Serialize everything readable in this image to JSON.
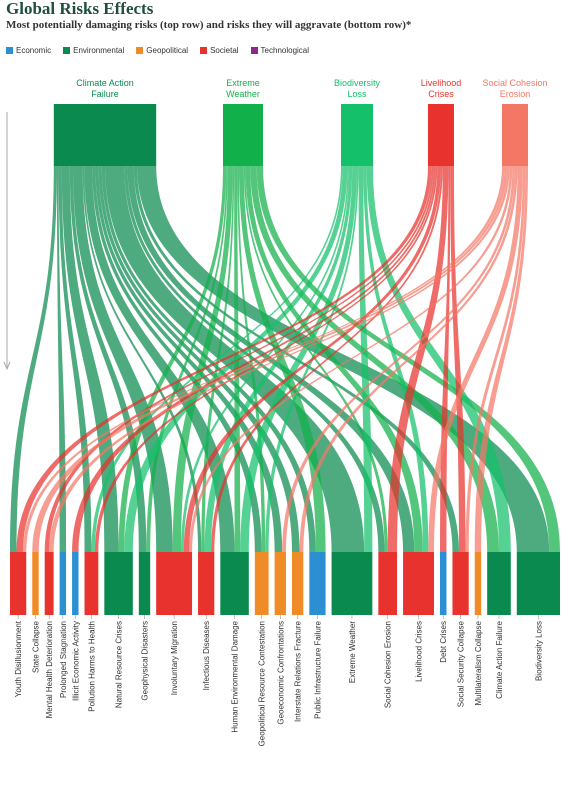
{
  "header": {
    "title": "Global Risks Effects",
    "subtitle": "Most potentially damaging risks (top row) and risks they will aggravate (bottom row)*"
  },
  "legend": [
    {
      "label": "Economic",
      "color": "#2b8fd2"
    },
    {
      "label": "Environmental",
      "color": "#0a8a4f"
    },
    {
      "label": "Geopolitical",
      "color": "#f08c28"
    },
    {
      "label": "Societal",
      "color": "#e8322d"
    },
    {
      "label": "Technological",
      "color": "#8a2a8a"
    }
  ],
  "chart_data": {
    "type": "sankey",
    "title": "Global Risks Effects",
    "subtitle": "Most potentially damaging risks (top row) and risks they will aggravate (bottom row)*",
    "sources": [
      {
        "name": "Climate Action Failure",
        "category": "Environmental",
        "color": "#0a8a4f",
        "label_lines": [
          "Climate Action",
          "Failure"
        ]
      },
      {
        "name": "Extreme Weather",
        "category": "Environmental",
        "color": "#12b04a",
        "label_lines": [
          "Extreme",
          "Weather"
        ]
      },
      {
        "name": "Biodiversity Loss",
        "category": "Environmental",
        "color": "#14c06a",
        "label_lines": [
          "Biodiversity",
          "Loss"
        ]
      },
      {
        "name": "Livelihood Crises",
        "category": "Societal",
        "color": "#e8322d",
        "label_lines": [
          "Livelihood",
          "Crises"
        ]
      },
      {
        "name": "Social Cohesion Erosion",
        "category": "Societal",
        "color": "#f47766",
        "label_lines": [
          "Social Cohesion",
          "Erosion"
        ]
      }
    ],
    "targets": [
      {
        "name": "Youth Disillusionment",
        "category": "Societal",
        "color": "#e8322d"
      },
      {
        "name": "State Collapse",
        "category": "Geopolitical",
        "color": "#f08c28"
      },
      {
        "name": "Mental Health Deterioration",
        "category": "Societal",
        "color": "#e8322d"
      },
      {
        "name": "Prolonged Stagnation",
        "category": "Economic",
        "color": "#2b8fd2"
      },
      {
        "name": "Illicit Economic Activity",
        "category": "Economic",
        "color": "#2b8fd2"
      },
      {
        "name": "Pollution Harms to Health",
        "category": "Societal",
        "color": "#e8322d"
      },
      {
        "name": "Natural Resource Crises",
        "category": "Environmental",
        "color": "#0a8a4f"
      },
      {
        "name": "Geophysical Disasters",
        "category": "Environmental",
        "color": "#0a8a4f"
      },
      {
        "name": "Involuntary Migration",
        "category": "Societal",
        "color": "#e8322d"
      },
      {
        "name": "Infectious Diseases",
        "category": "Societal",
        "color": "#e8322d"
      },
      {
        "name": "Human Environmental Damage",
        "category": "Environmental",
        "color": "#0a8a4f"
      },
      {
        "name": "Geopolitical Resource Contestation",
        "category": "Geopolitical",
        "color": "#f08c28"
      },
      {
        "name": "Geoeconomic Confrontations",
        "category": "Geopolitical",
        "color": "#f08c28"
      },
      {
        "name": "Interstate Relations Fracture",
        "category": "Geopolitical",
        "color": "#f08c28"
      },
      {
        "name": "Public Infrastructure Failure",
        "category": "Economic",
        "color": "#2b8fd2"
      },
      {
        "name": "Extreme Weather",
        "category": "Environmental",
        "color": "#0a8a4f"
      },
      {
        "name": "Social Cohesion Erosion",
        "category": "Societal",
        "color": "#e8322d"
      },
      {
        "name": "Livelihood Crises",
        "category": "Societal",
        "color": "#e8322d"
      },
      {
        "name": "Debt Crises",
        "category": "Economic",
        "color": "#2b8fd2"
      },
      {
        "name": "Social Security Collapse",
        "category": "Societal",
        "color": "#e8322d"
      },
      {
        "name": "Multilateralism Collapse",
        "category": "Geopolitical",
        "color": "#f08c28"
      },
      {
        "name": "Climate Action Failure",
        "category": "Environmental",
        "color": "#0a8a4f"
      },
      {
        "name": "Biodiversity Loss",
        "category": "Environmental",
        "color": "#0a8a4f"
      }
    ],
    "links": [
      {
        "source": 0,
        "target": 6,
        "value": 5
      },
      {
        "source": 0,
        "target": 7,
        "value": 2
      },
      {
        "source": 0,
        "target": 8,
        "value": 6
      },
      {
        "source": 0,
        "target": 10,
        "value": 5
      },
      {
        "source": 0,
        "target": 15,
        "value": 12
      },
      {
        "source": 0,
        "target": 22,
        "value": 12
      },
      {
        "source": 0,
        "target": 17,
        "value": 4
      },
      {
        "source": 0,
        "target": 11,
        "value": 2
      },
      {
        "source": 0,
        "target": 13,
        "value": 2
      },
      {
        "source": 0,
        "target": 0,
        "value": 2
      },
      {
        "source": 0,
        "target": 5,
        "value": 2
      },
      {
        "source": 0,
        "target": 9,
        "value": 1
      },
      {
        "source": 0,
        "target": 3,
        "value": 1
      },
      {
        "source": 0,
        "target": 14,
        "value": 2
      },
      {
        "source": 0,
        "target": 19,
        "value": 2
      },
      {
        "source": 0,
        "target": 12,
        "value": 2
      },
      {
        "source": 0,
        "target": 16,
        "value": 2
      },
      {
        "source": 1,
        "target": 6,
        "value": 2
      },
      {
        "source": 1,
        "target": 8,
        "value": 3
      },
      {
        "source": 1,
        "target": 10,
        "value": 2
      },
      {
        "source": 1,
        "target": 14,
        "value": 3
      },
      {
        "source": 1,
        "target": 21,
        "value": 4
      },
      {
        "source": 1,
        "target": 22,
        "value": 4
      },
      {
        "source": 1,
        "target": 17,
        "value": 3
      },
      {
        "source": 1,
        "target": 9,
        "value": 1
      },
      {
        "source": 1,
        "target": 7,
        "value": 1
      },
      {
        "source": 1,
        "target": 11,
        "value": 1
      },
      {
        "source": 1,
        "target": 16,
        "value": 1
      },
      {
        "source": 2,
        "target": 6,
        "value": 3
      },
      {
        "source": 2,
        "target": 9,
        "value": 2
      },
      {
        "source": 2,
        "target": 10,
        "value": 3
      },
      {
        "source": 2,
        "target": 15,
        "value": 3
      },
      {
        "source": 2,
        "target": 21,
        "value": 4
      },
      {
        "source": 2,
        "target": 17,
        "value": 2
      },
      {
        "source": 2,
        "target": 8,
        "value": 1
      },
      {
        "source": 2,
        "target": 5,
        "value": 1
      },
      {
        "source": 2,
        "target": 11,
        "value": 1
      },
      {
        "source": 3,
        "target": 0,
        "value": 2
      },
      {
        "source": 3,
        "target": 2,
        "value": 1
      },
      {
        "source": 3,
        "target": 8,
        "value": 2
      },
      {
        "source": 3,
        "target": 16,
        "value": 3
      },
      {
        "source": 3,
        "target": 18,
        "value": 1
      },
      {
        "source": 3,
        "target": 19,
        "value": 2
      },
      {
        "source": 3,
        "target": 5,
        "value": 1
      },
      {
        "source": 3,
        "target": 4,
        "value": 1
      },
      {
        "source": 3,
        "target": 9,
        "value": 1
      },
      {
        "source": 4,
        "target": 0,
        "value": 1
      },
      {
        "source": 4,
        "target": 2,
        "value": 1
      },
      {
        "source": 4,
        "target": 8,
        "value": 1
      },
      {
        "source": 4,
        "target": 17,
        "value": 2
      },
      {
        "source": 4,
        "target": 20,
        "value": 1
      },
      {
        "source": 4,
        "target": 1,
        "value": 1
      },
      {
        "source": 4,
        "target": 13,
        "value": 1
      },
      {
        "source": 4,
        "target": 12,
        "value": 1
      },
      {
        "source": 4,
        "target": 19,
        "value": 1
      }
    ]
  }
}
